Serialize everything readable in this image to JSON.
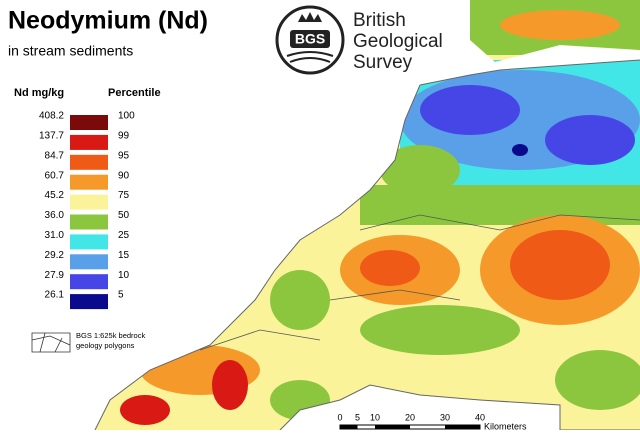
{
  "title": "Neodymium (Nd)",
  "subtitle": "in stream sediments",
  "legend": {
    "value_heading": "Nd mg/kg",
    "percentile_heading": "Percentile",
    "values": [
      "408.2",
      "137.7",
      "84.7",
      "60.7",
      "45.2",
      "36.0",
      "31.0",
      "29.2",
      "27.9",
      "26.1"
    ],
    "percentiles": [
      "100",
      "99",
      "95",
      "90",
      "75",
      "50",
      "25",
      "15",
      "10",
      "5"
    ],
    "colors": [
      "#7b0a0a",
      "#d91a14",
      "#ef5a17",
      "#f59a2a",
      "#fbf39a",
      "#8cc63f",
      "#43e6e6",
      "#5aa0e8",
      "#4646e6",
      "#0a0a8c"
    ],
    "note": [
      "BGS 1:625k bedrock",
      "geology polygons"
    ]
  },
  "logo": {
    "mark": "BGS",
    "lines": [
      "British",
      "Geological",
      "Survey"
    ]
  },
  "scale_bar": {
    "ticks": [
      "0",
      "5",
      "10",
      "20",
      "30",
      "40"
    ],
    "unit": "Kilometers"
  }
}
